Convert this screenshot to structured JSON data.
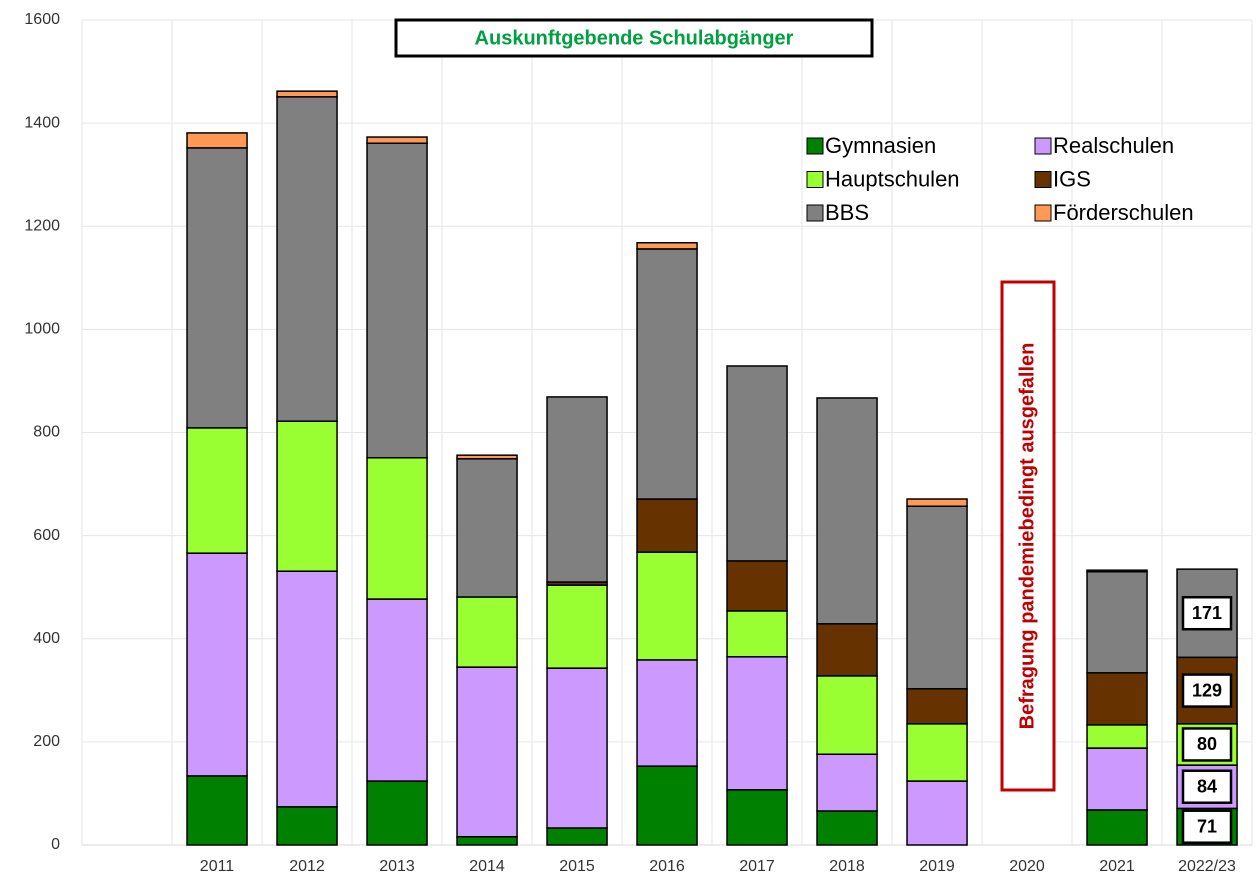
{
  "chart_data": {
    "type": "stacked_bar",
    "title": "Auskunftgebende Schulabgänger",
    "annotation": "Befragung pandemiebedingt ausgefallen",
    "categories": [
      null,
      "2011",
      "2012",
      "2013",
      "2014",
      "2015",
      "2016",
      "2017",
      "2018",
      "2019",
      "2020",
      "2021",
      "2022/23"
    ],
    "series": [
      {
        "name": "Gymnasien",
        "color": "#008000",
        "values": [
          null,
          134,
          74,
          124,
          16,
          33,
          153,
          107,
          66,
          0,
          null,
          68,
          71
        ]
      },
      {
        "name": "Realschulen",
        "color": "#cc99ff",
        "values": [
          null,
          432,
          457,
          353,
          329,
          310,
          206,
          258,
          110,
          124,
          null,
          120,
          84
        ]
      },
      {
        "name": "Hauptschulen",
        "color": "#99ff33",
        "values": [
          null,
          243,
          291,
          274,
          136,
          161,
          209,
          89,
          152,
          111,
          null,
          45,
          80
        ]
      },
      {
        "name": "IGS",
        "color": "#663300",
        "values": [
          null,
          0,
          0,
          0,
          0,
          6,
          103,
          97,
          101,
          68,
          null,
          101,
          129
        ]
      },
      {
        "name": "BBS",
        "color": "#808080",
        "values": [
          null,
          543,
          629,
          610,
          268,
          359,
          485,
          378,
          438,
          354,
          null,
          196,
          171
        ]
      },
      {
        "name": "Förderschulen",
        "color": "#ff9955",
        "values": [
          null,
          29,
          11,
          12,
          7,
          0,
          12,
          0,
          0,
          14,
          null,
          3,
          0
        ]
      }
    ],
    "labeled_category": "2022/23",
    "ylim": [
      0,
      1600
    ],
    "yticks": [
      0,
      200,
      400,
      600,
      800,
      1000,
      1200,
      1400,
      1600
    ],
    "grid": true
  }
}
